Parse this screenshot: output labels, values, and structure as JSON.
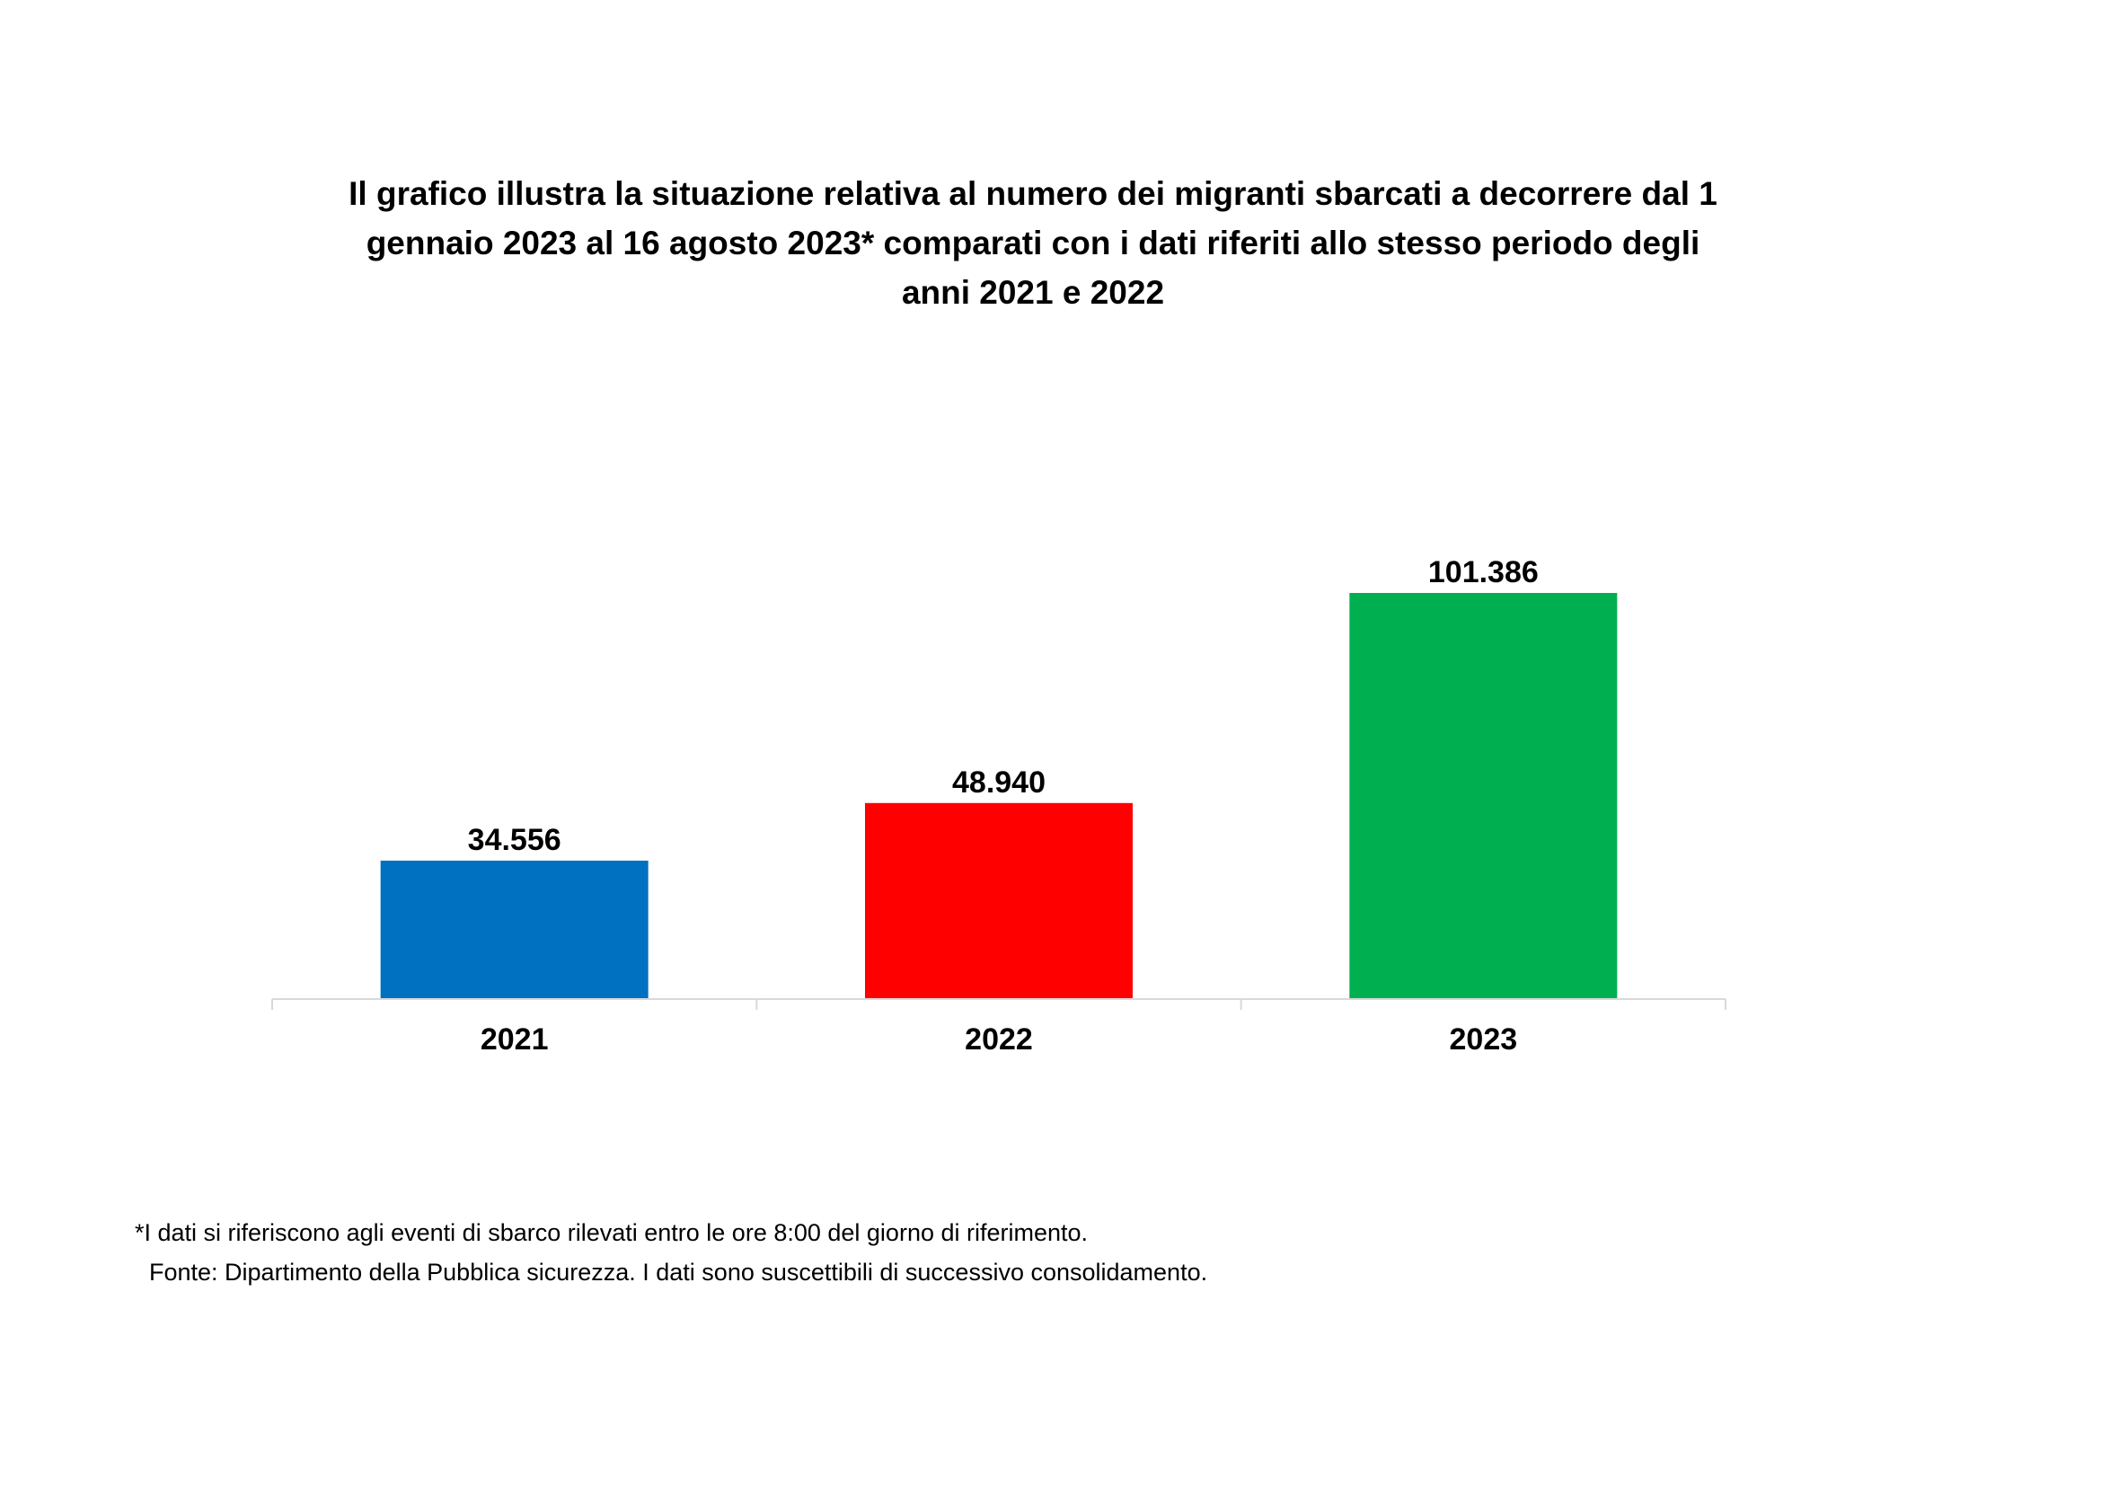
{
  "chart_data": {
    "type": "bar",
    "title_lines": [
      "Il grafico illustra la situazione relativa al numero dei migranti sbarcati a decorrere dal 1",
      "gennaio 2023 al 16 agosto 2023* comparati con i dati riferiti allo stesso periodo degli",
      "anni 2021 e 2022"
    ],
    "categories": [
      "2021",
      "2022",
      "2023"
    ],
    "values": [
      34556,
      48940,
      101386
    ],
    "value_labels": [
      "34.556",
      "48.940",
      "101.386"
    ],
    "colors": [
      "#0070c0",
      "#ff0000",
      "#00b050"
    ],
    "xlabel": "",
    "ylabel": "",
    "ylim": [
      0,
      101386
    ],
    "grid": false,
    "legend": "none"
  },
  "footnote": {
    "note": "*I dati si riferiscono agli eventi di sbarco rilevati entro le ore 8:00 del giorno di riferimento.",
    "source": "Fonte: Dipartimento della Pubblica sicurezza. I dati sono suscettibili di successivo consolidamento."
  }
}
